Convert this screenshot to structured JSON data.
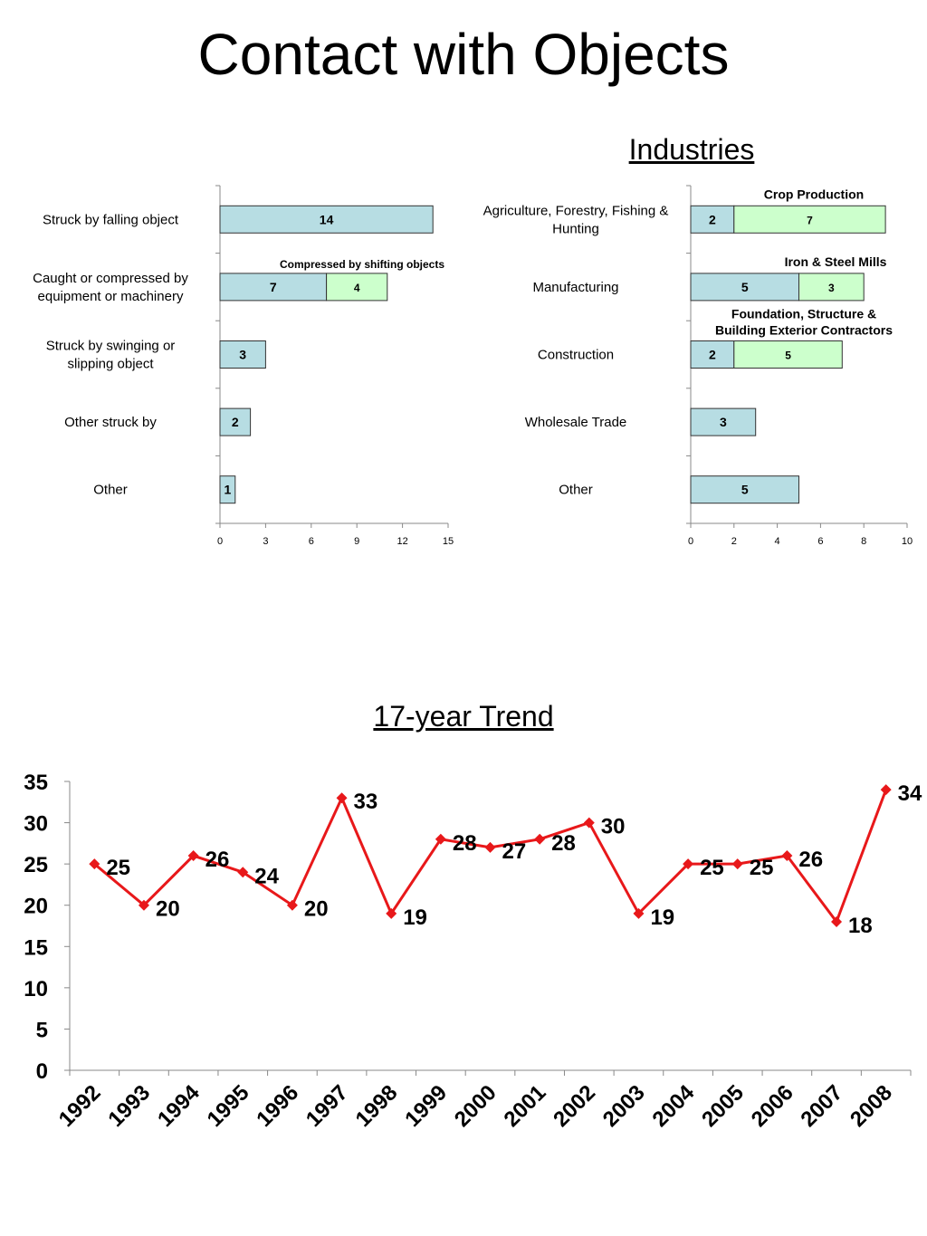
{
  "title": "Contact with Objects",
  "chart_data": [
    {
      "type": "bar",
      "orientation": "horizontal",
      "stacked": true,
      "title": "",
      "categories": [
        "Struck by falling object",
        "Caught or compressed by equipment or machinery",
        "Struck by swinging or slipping object",
        "Other struck by",
        "Other"
      ],
      "series": [
        {
          "values": [
            14,
            7,
            3,
            2,
            1
          ]
        },
        {
          "values": [
            0,
            4,
            0,
            0,
            0
          ]
        }
      ],
      "annotations": [
        {
          "category": "Caught or compressed by equipment or machinery",
          "text": "Compressed by shifting objects"
        }
      ],
      "xlim": [
        0,
        15
      ],
      "xticks": [
        0,
        3,
        6,
        9,
        12,
        15
      ]
    },
    {
      "type": "bar",
      "orientation": "horizontal",
      "stacked": true,
      "title": "Industries",
      "categories": [
        "Agriculture, Forestry, Fishing & Hunting",
        "Manufacturing",
        "Construction",
        "Wholesale Trade",
        "Other"
      ],
      "series": [
        {
          "values": [
            2,
            5,
            2,
            3,
            5
          ]
        },
        {
          "values": [
            7,
            3,
            5,
            0,
            0
          ]
        }
      ],
      "annotations": [
        {
          "category": "Agriculture, Forestry, Fishing & Hunting",
          "text": "Crop Production"
        },
        {
          "category": "Manufacturing",
          "text": "Iron & Steel Mills"
        },
        {
          "category": "Construction",
          "text": "Foundation, Structure & Building Exterior Contractors"
        }
      ],
      "xlim": [
        0,
        10
      ],
      "xticks": [
        0,
        2,
        4,
        6,
        8,
        10
      ]
    },
    {
      "type": "line",
      "title": "17-year Trend",
      "x": [
        "1992",
        "1993",
        "1994",
        "1995",
        "1996",
        "1997",
        "1998",
        "1999",
        "2000",
        "2001",
        "2002",
        "2003",
        "2004",
        "2005",
        "2006",
        "2007",
        "2008"
      ],
      "series": [
        {
          "values": [
            25,
            20,
            26,
            24,
            20,
            33,
            19,
            28,
            27,
            28,
            30,
            19,
            25,
            25,
            26,
            18,
            34
          ]
        }
      ],
      "ylim": [
        0,
        35
      ],
      "yticks": [
        0,
        5,
        10,
        15,
        20,
        25,
        30,
        35
      ],
      "color": "#e8181a",
      "marker": "diamond"
    }
  ],
  "colors": {
    "primary_bar": "#b7dde3",
    "secondary_bar": "#ccffcc",
    "line": "#e8181a"
  }
}
